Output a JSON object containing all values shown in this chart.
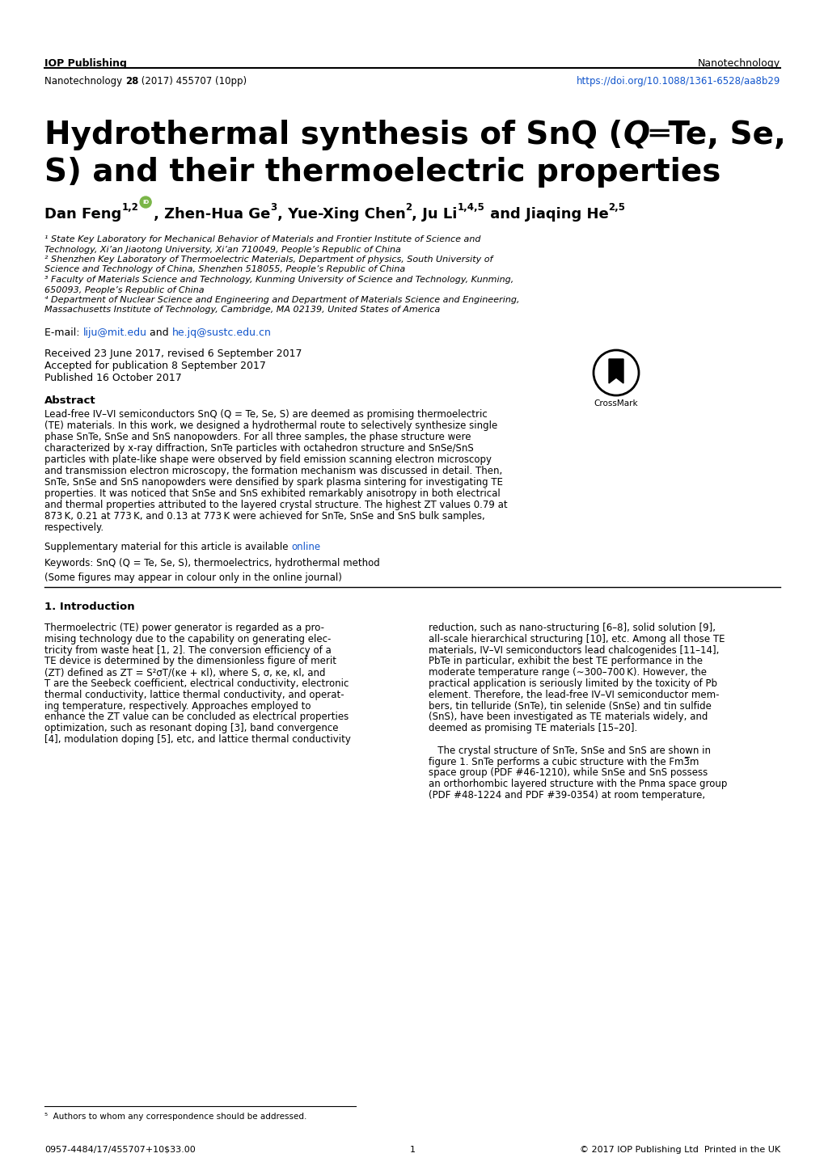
{
  "background_color": "#ffffff",
  "iop_publishing": "IOP Publishing",
  "nanotechnology_right": "Nanotechnology",
  "journal_line": "Nanotechnology   (28 (2017) 455707 (10pp)",
  "doi_text": "https://doi.org/10.1088/1361-6528/aa8b29",
  "doi_color": "#1155cc",
  "title_fs": 28,
  "authors_fs": 13.0,
  "aff_fs": 8.0,
  "body_fs": 8.5,
  "intro_fs": 8.5,
  "aff1_line1": "¹ State Key Laboratory for Mechanical Behavior of Materials and Frontier Institute of Science and",
  "aff1_line2": "Technology, Xi’an Jiaotong University, Xi’an 710049, People’s Republic of China",
  "aff2_line1": "² Shenzhen Key Laboratory of Thermoelectric Materials, Department of physics, South University of",
  "aff2_line2": "Science and Technology of China, Shenzhen 518055, People’s Republic of China",
  "aff3_line1": "³ Faculty of Materials Science and Technology, Kunming University of Science and Technology, Kunming,",
  "aff3_line2": "650093, People’s Republic of China",
  "aff4_line1": "⁴ Department of Nuclear Science and Engineering and Department of Materials Science and Engineering,",
  "aff4_line2": "Massachusetts Institute of Technology, Cambridge, MA 02139, United States of America",
  "email_prefix": "E-mail: ",
  "email1": "liju@mit.edu",
  "email_and": " and ",
  "email2": "he.jq@sustc.edu.cn",
  "email_color": "#1155cc",
  "received": "Received 23 June 2017, revised 6 September 2017",
  "accepted": "Accepted for publication 8 September 2017",
  "published": "Published 16 October 2017",
  "abstract_title": "Abstract",
  "abs_lines": [
    "Lead-free – semiconductors SnQ (Q = Te, Se, S) are deemed as promising thermoelectric",
    "(TE) materials. In this work, we designed a hydrothermal route to selectively synthesize single",
    "phase SnTe, SnSe and SnS nanopowders. For all three samples, the phase structure were",
    "characterized by x-ray diffraction, SnTe particles with octahedron structure and SnSe/SnS",
    "particles with plate-like shape were observed by field emission scanning electron microscopy",
    "and transmission electron microscopy, the formation mechanism was discussed in detail. Then,",
    "SnTe, SnSe and SnS nanopowders were densified by spark plasma sintering for investigating TE",
    "properties. It was noticed that SnSe and SnS exhibited remarkably anisotropy in both electrical",
    "and thermal properties attributed to the layered crystal structure. The highest ZT values 0.79 at",
    "873 K, 0.21 at 773 K, and 0.13 at 773 K were achieved for SnTe, SnSe and SnS bulk samples,",
    "respectively."
  ],
  "abs_line0_special": "Lead-free IV–VI semiconductors SnQ (Q = Te, Se, S) are deemed as promising thermoelectric",
  "supp_text": "Supplementary material for this article is available ",
  "online_text": "online",
  "online_color": "#1155cc",
  "keywords_text": "Keywords: SnQ (Q = Te, Se, S), thermoelectrics, hydrothermal method",
  "colour_note": "(Some figures may appear in colour only in the online journal)",
  "intro_title": "1. Introduction",
  "col1_lines": [
    "Thermoelectric (TE) power generator is regarded as a pro-",
    "mising technology due to the capability on generating elec-",
    "tricity from waste heat [1, 2]. The conversion efficiency of a",
    "TE device is determined by the dimensionless figure of merit",
    "(ZT) defined as ZT = S²σT/(κe + κl), where S, σ, κe, κl, and",
    "T are the Seebeck coefficient, electrical conductivity, electronic",
    "thermal conductivity, lattice thermal conductivity, and operat-",
    "ing temperature, respectively. Approaches employed to",
    "enhance the ZT value can be concluded as electrical properties",
    "optimization, such as resonant doping [3], band convergence",
    "[4], modulation doping [5], etc, and lattice thermal conductivity"
  ],
  "col2_lines": [
    "reduction, such as nano-structuring [6–8], solid solution [9],",
    "all-scale hierarchical structuring [10], etc. Among all those TE",
    "materials, IV–VI semiconductors lead chalcogenides [11–14],",
    "PbTe in particular, exhibit the best TE performance in the",
    "moderate temperature range (∼300–700 K). However, the",
    "practical application is seriously limited by the toxicity of Pb",
    "element. Therefore, the lead-free IV–VI semiconductor mem-",
    "bers, tin telluride (SnTe), tin selenide (SnSe) and tin sulfide",
    "(SnS), have been investigated as TE materials widely, and",
    "deemed as promising TE materials [15–20].",
    "",
    "   The crystal structure of SnTe, SnSe and SnS are shown in",
    "figure 1. SnTe performs a cubic structure with the Fm3̅m",
    "space group (PDF #46-1210), while SnSe and SnS possess",
    "an orthorhombic layered structure with the Pnma space group",
    "(PDF #48-1224 and PDF #39-0354) at room temperature,"
  ],
  "footnote": "⁵  Authors to whom any correspondence should be addressed.",
  "footer_left": "0957-4484/17/455707+10$33.00",
  "footer_page": "1",
  "footer_right": "© 2017 IOP Publishing Ltd  Printed in the UK",
  "orcid_color": "#7ab648"
}
